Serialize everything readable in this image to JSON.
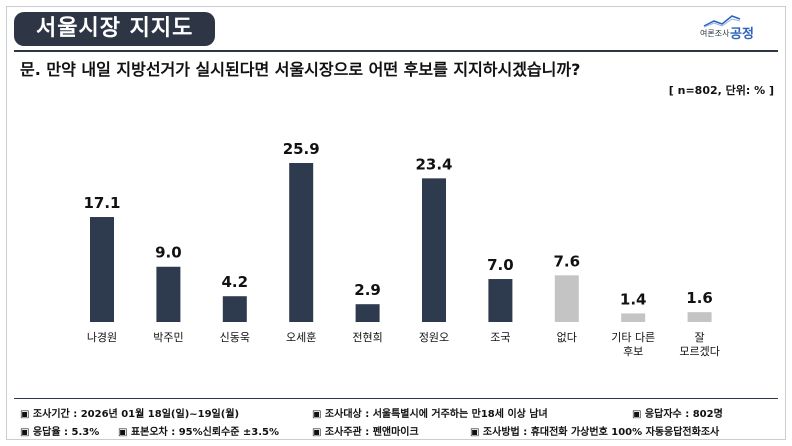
{
  "header": {
    "title": "서울시장 지지도",
    "logo_small": "여론조사",
    "logo_big": "공정"
  },
  "question": "문. 만약 내일 지방선거가 실시된다면 서울시장으로 어떤 후보를 지지하시겠습니까?",
  "note": "[ n=802, 단위: % ]",
  "colors": {
    "primary_bar": "#2e3a4d",
    "muted_bar": "#c4c4c4"
  },
  "chart_data": {
    "type": "bar",
    "title": "",
    "xlabel": "",
    "ylabel": "",
    "ylim": [
      0,
      30
    ],
    "categories": [
      "나경원",
      "박주민",
      "신동욱",
      "오세훈",
      "전현희",
      "정원오",
      "조국",
      "없다",
      "기타 다른 후보",
      "잘 모르겠다"
    ],
    "category_lines": [
      [
        "나경원"
      ],
      [
        "박주민"
      ],
      [
        "신동욱"
      ],
      [
        "오세훈"
      ],
      [
        "전현희"
      ],
      [
        "정원오"
      ],
      [
        "조국"
      ],
      [
        "없다"
      ],
      [
        "기타 다른",
        "후보"
      ],
      [
        "잘",
        "모르겠다"
      ]
    ],
    "values": [
      17.1,
      9.0,
      4.2,
      25.9,
      2.9,
      23.4,
      7.0,
      7.6,
      1.4,
      1.6
    ],
    "value_labels": [
      "17.1",
      "9.0",
      "4.2",
      "25.9",
      "2.9",
      "23.4",
      "7.0",
      "7.6",
      "1.4",
      "1.6"
    ],
    "bar_colors": [
      "#2e3a4d",
      "#2e3a4d",
      "#2e3a4d",
      "#2e3a4d",
      "#2e3a4d",
      "#2e3a4d",
      "#2e3a4d",
      "#c4c4c4",
      "#c4c4c4",
      "#c4c4c4"
    ],
    "grid": false,
    "legend": "none"
  },
  "footer": {
    "row1": [
      "▣ 조사기간 : 2026년 01월 18일(일)~19일(월)",
      "▣ 조사대상 : 서울특별시에 거주하는 만18세 이상 남녀",
      "▣ 응답자수 : 802명"
    ],
    "row2": [
      "▣ 응답율 : 5.3%",
      "▣ 표본오차 : 95%신뢰수준 ±3.5%",
      "▣ 조사주관 : 펜앤마이크",
      "▣ 조사방법 : 휴대전화 가상번호 100% 자동응답전화조사"
    ]
  }
}
